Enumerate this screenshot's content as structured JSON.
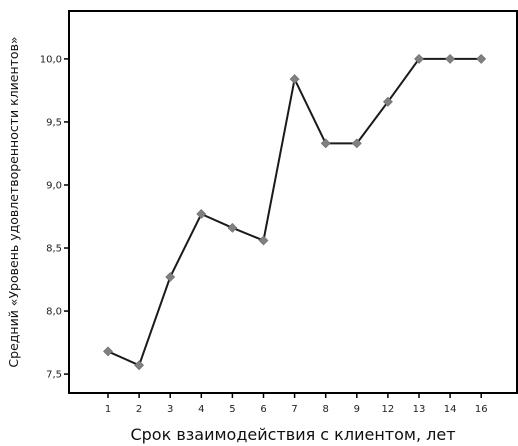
{
  "chart_data": {
    "type": "line",
    "title": "",
    "xlabel": "Срок взаимодействия с клиентом, лет",
    "ylabel": "Средний «Уровень удовлетворенности клиентов»",
    "categories": [
      "1",
      "2",
      "3",
      "4",
      "5",
      "6",
      "7",
      "8",
      "9",
      "12",
      "13",
      "14",
      "16"
    ],
    "series": [
      {
        "values": [
          7.68,
          7.57,
          8.27,
          8.77,
          8.66,
          8.56,
          9.84,
          9.33,
          9.33,
          9.66,
          10.0,
          10.0,
          10.0
        ]
      }
    ],
    "ylim": [
      7.35,
      10.38
    ],
    "yticks": [
      "7,5",
      "8,0",
      "8,5",
      "9,0",
      "9,5",
      "10,0"
    ],
    "ytick_values": [
      7.5,
      8.0,
      8.5,
      9.0,
      9.5,
      10.0
    ],
    "grid": false,
    "colors": {
      "line": "#1a1a1a",
      "marker": "#808080",
      "axis": "#000000"
    }
  }
}
